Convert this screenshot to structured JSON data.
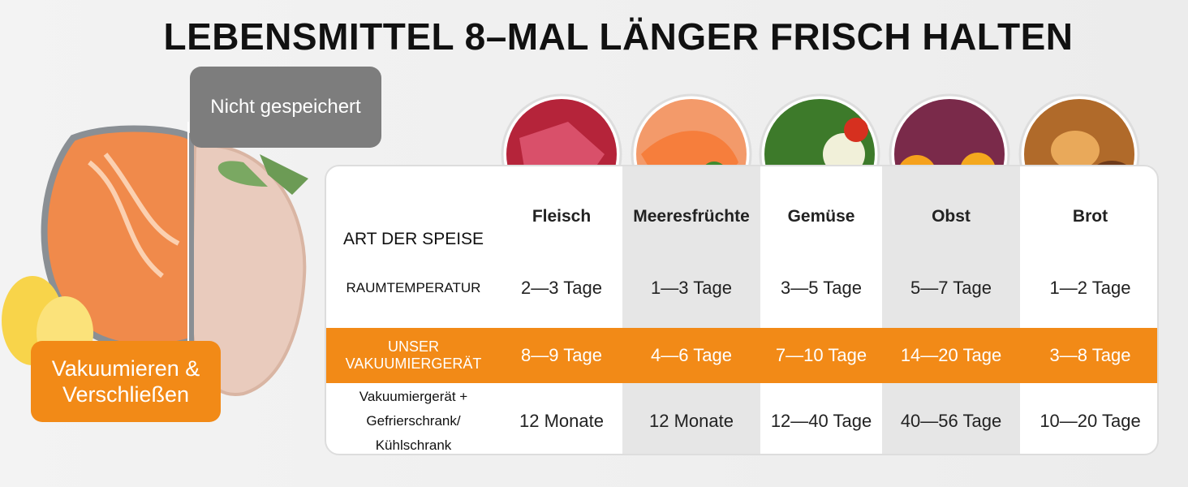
{
  "title": "LEBENSMITTEL 8–MAL LÄNGER FRISCH HALTEN",
  "labels": {
    "before": "Nicht gespeichert",
    "after": "Vakuumieren & Verschließen"
  },
  "table": {
    "header_label": "ART DER SPEISE",
    "columns": [
      "Fleisch",
      "Meeresfrüchte",
      "Gemüse",
      "Obst",
      "Brot"
    ],
    "rows": [
      {
        "label": "RAUMTEMPERATUR",
        "values": [
          "2—3 Tage",
          "1—3 Tage",
          "3—5 Tage",
          "5—7 Tage",
          "1—2 Tage"
        ]
      },
      {
        "label": "UNSER VAKUUMIERGERÄT",
        "values": [
          "8—9 Tage",
          "4—6 Tage",
          "7—10 Tage",
          "14—20 Tage",
          "3—8 Tage"
        ]
      },
      {
        "label": "Vakuumiergerät + Gefrierschrank/ Kühlschrank",
        "values": [
          "12 Monate",
          "12 Monate",
          "12—40 Tage",
          "40—56 Tage",
          "10—20 Tage"
        ]
      }
    ]
  }
}
